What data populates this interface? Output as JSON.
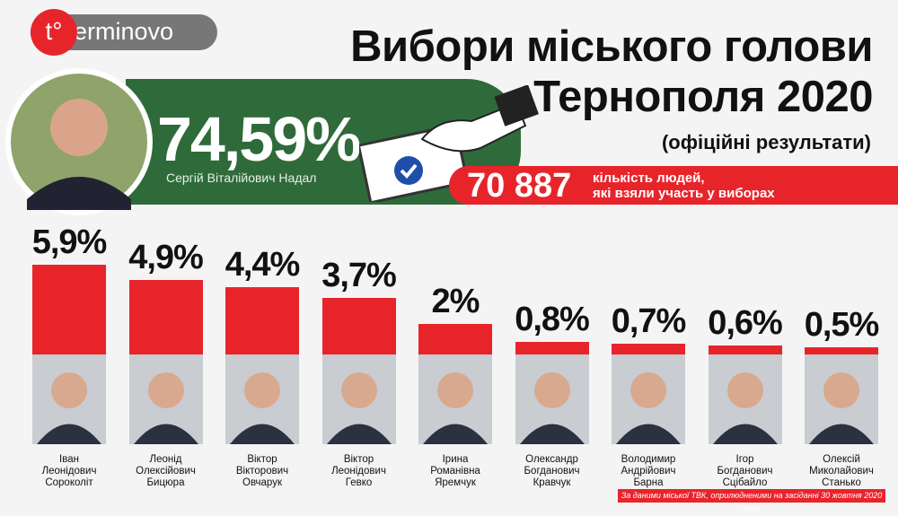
{
  "logo": {
    "mark": "t°",
    "text": "erminovo"
  },
  "header": {
    "title": "Вибори міського голови\nТернополя 2020",
    "subtitle": "(офіційні результати)"
  },
  "winner": {
    "percent": "74,59%",
    "name": "Сергій Віталійович Надал"
  },
  "turnout": {
    "count": "70 887",
    "text": "кількість людей,\nякі взяли участь у виборах"
  },
  "source": "За даними міської ТВК, оприлюдненими на засіданні 30 жовтня 2020 року",
  "chart_data": {
    "type": "bar",
    "color": "#e8242b",
    "ylim": [
      0,
      6
    ],
    "categories": [
      "Іван\nЛеонідович\nСороколіт",
      "Леонід\nОлексійович\nБицюра",
      "Віктор\nВікторович\nОвчарук",
      "Віктор\nЛеонідович\nГевко",
      "Ірина\nРоманівна\nЯремчук",
      "Олександр\nБогданович\nКравчук",
      "Володимир\nАндрійович\nБарна",
      "Ігор\nБогданович\nСцібайло",
      "Олексій\nМиколайович\nСтанько"
    ],
    "values": [
      5.9,
      4.9,
      4.4,
      3.7,
      2,
      0.8,
      0.7,
      0.6,
      0.5
    ],
    "value_labels": [
      "5,9%",
      "4,9%",
      "4,4%",
      "3,7%",
      "2%",
      "0,8%",
      "0,7%",
      "0,6%",
      "0,5%"
    ]
  }
}
